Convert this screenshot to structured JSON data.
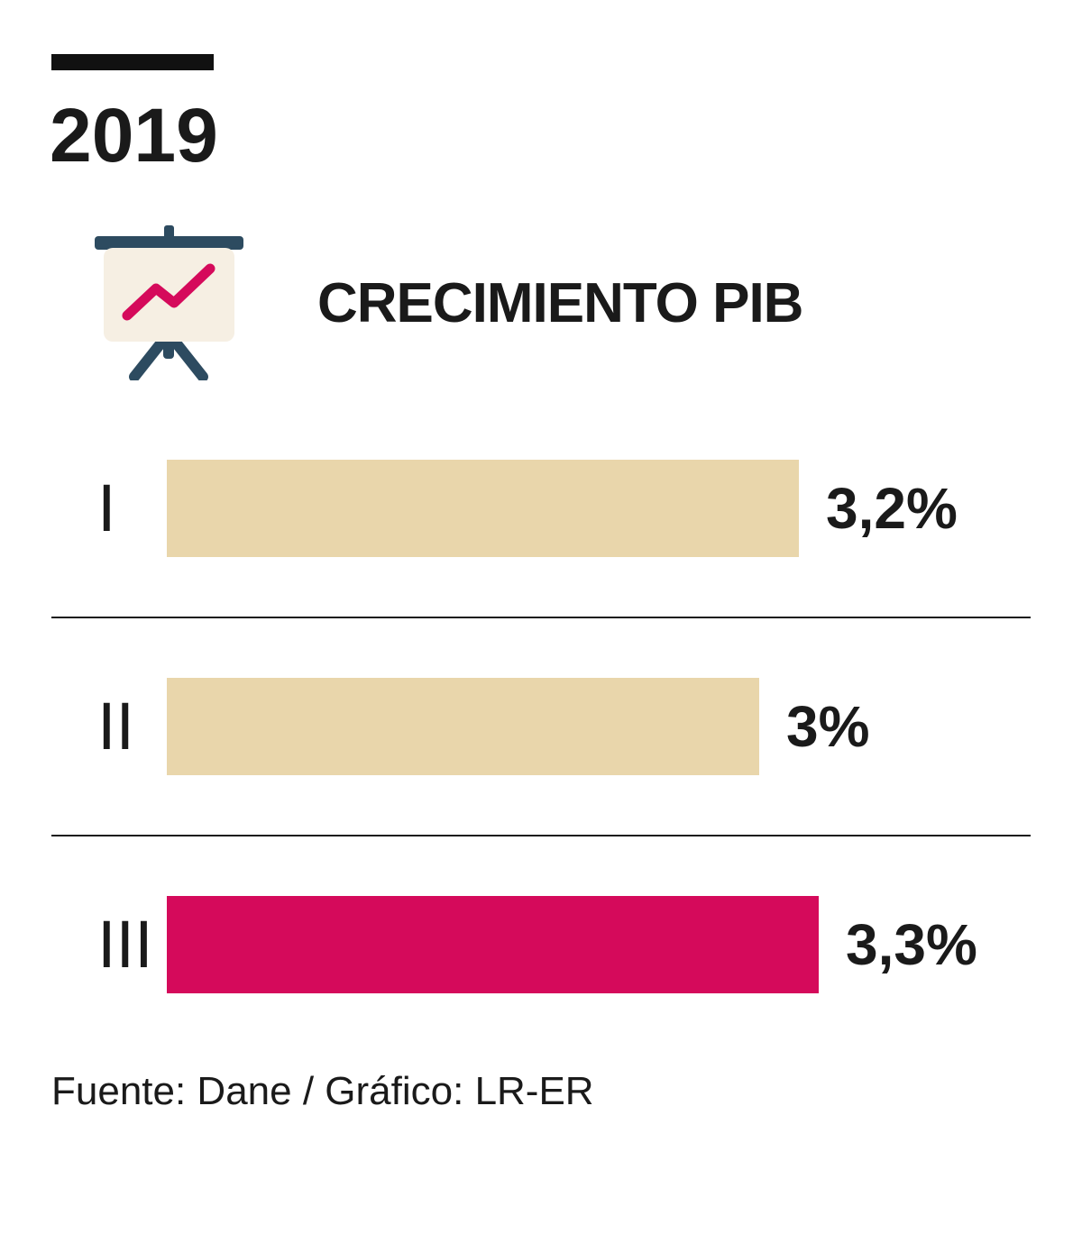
{
  "header": {
    "year": "2019",
    "title": "CRECIMIENTO PIB"
  },
  "footer": {
    "source": "Fuente: Dane / Gráfico: LR-ER"
  },
  "colors": {
    "text": "#1a1a1a",
    "top_rule": "#111111",
    "bar_default": "#e9d6ab",
    "bar_highlight": "#d50a5b",
    "icon_frame": "#2d4b60",
    "icon_board": "#f6efe3",
    "icon_line": "#d50a5b"
  },
  "chart_data": {
    "type": "bar",
    "orientation": "horizontal",
    "title": "CRECIMIENTO PIB",
    "year": "2019",
    "categories": [
      "I",
      "II",
      "III"
    ],
    "values": [
      3.2,
      3.0,
      3.3
    ],
    "value_labels": [
      "3,2%",
      "3%",
      "3,3%"
    ],
    "bar_colors": [
      "#e9d6ab",
      "#e9d6ab",
      "#d50a5b"
    ],
    "xlim": [
      0,
      3.3
    ],
    "unit": "%",
    "grid": false,
    "legend": "none",
    "source": "Fuente: Dane / Gráfico: LR-ER"
  }
}
